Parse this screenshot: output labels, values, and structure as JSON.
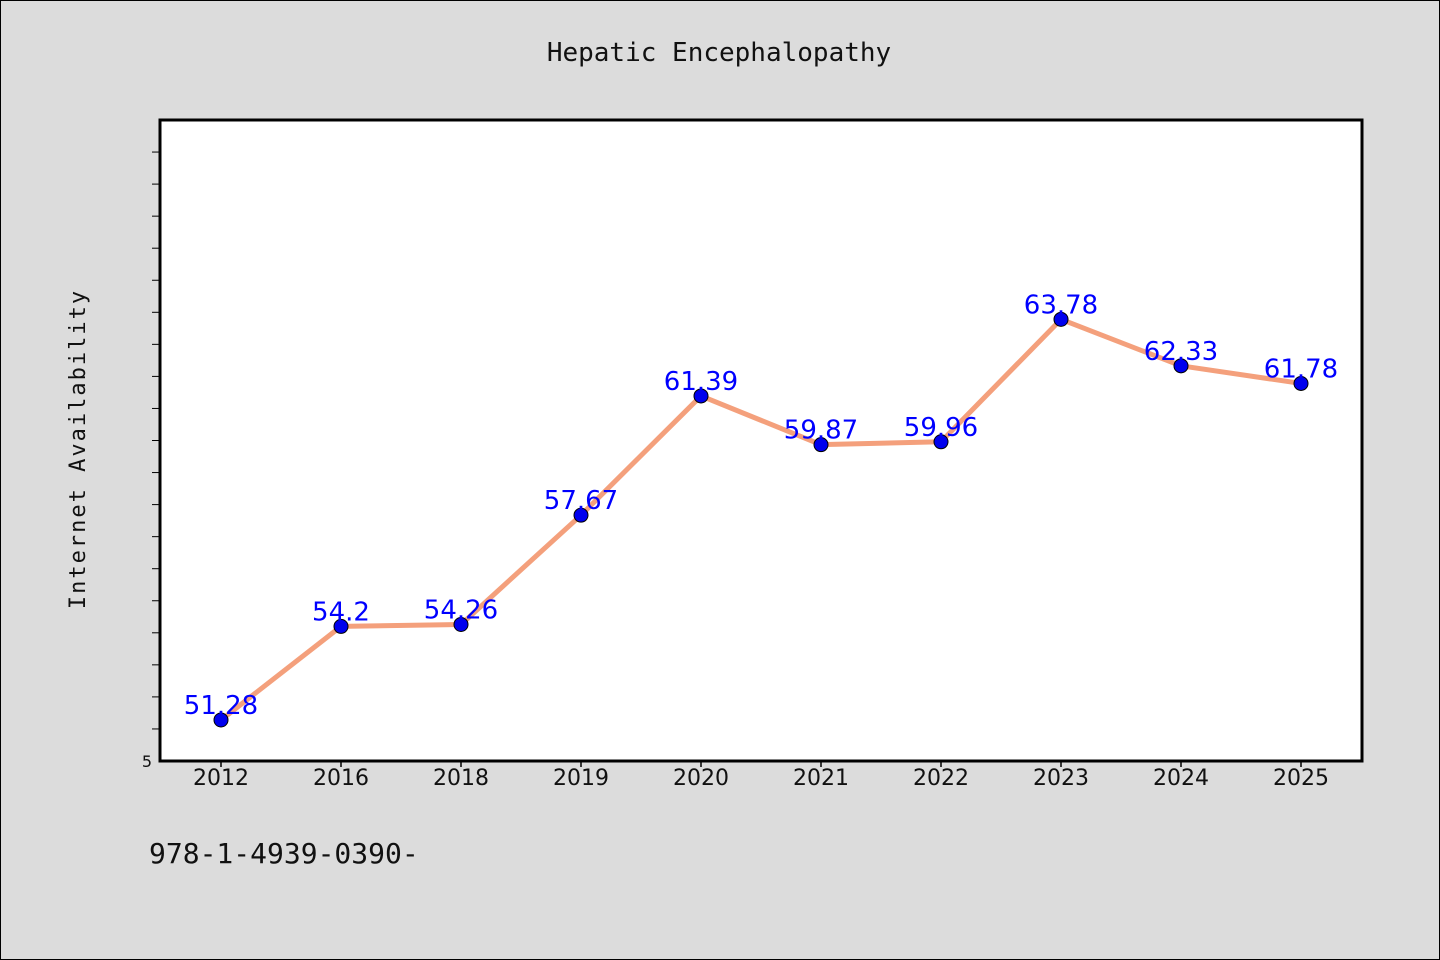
{
  "chart_data": {
    "type": "line",
    "title": "Hepatic Encephalopathy",
    "xlabel": "",
    "ylabel": "Internet Availability",
    "categories": [
      "2012",
      "2016",
      "2018",
      "2019",
      "2020",
      "2021",
      "2022",
      "2023",
      "2024",
      "2025"
    ],
    "series": [
      {
        "values": [
          51.28,
          54.2,
          54.26,
          57.67,
          61.39,
          59.87,
          59.96,
          63.78,
          62.33,
          61.78
        ]
      }
    ],
    "data_labels": [
      "51.28",
      "54.2",
      "54.26",
      "57.67",
      "61.39",
      "59.87",
      "59.96",
      "63.78",
      "62.33",
      "61.78"
    ],
    "ylim": [
      50,
      70
    ],
    "y_tick_labels": [
      "5"
    ],
    "grid": false,
    "legend": "none",
    "colors": {
      "line": "#f4a07c",
      "marker": "#0000ee",
      "marker_edge": "#000000",
      "label": "#0000ff",
      "background": "#dcdcdc",
      "plot_background": "#ffffff"
    }
  },
  "footer_text": "978-1-4939-0390-"
}
